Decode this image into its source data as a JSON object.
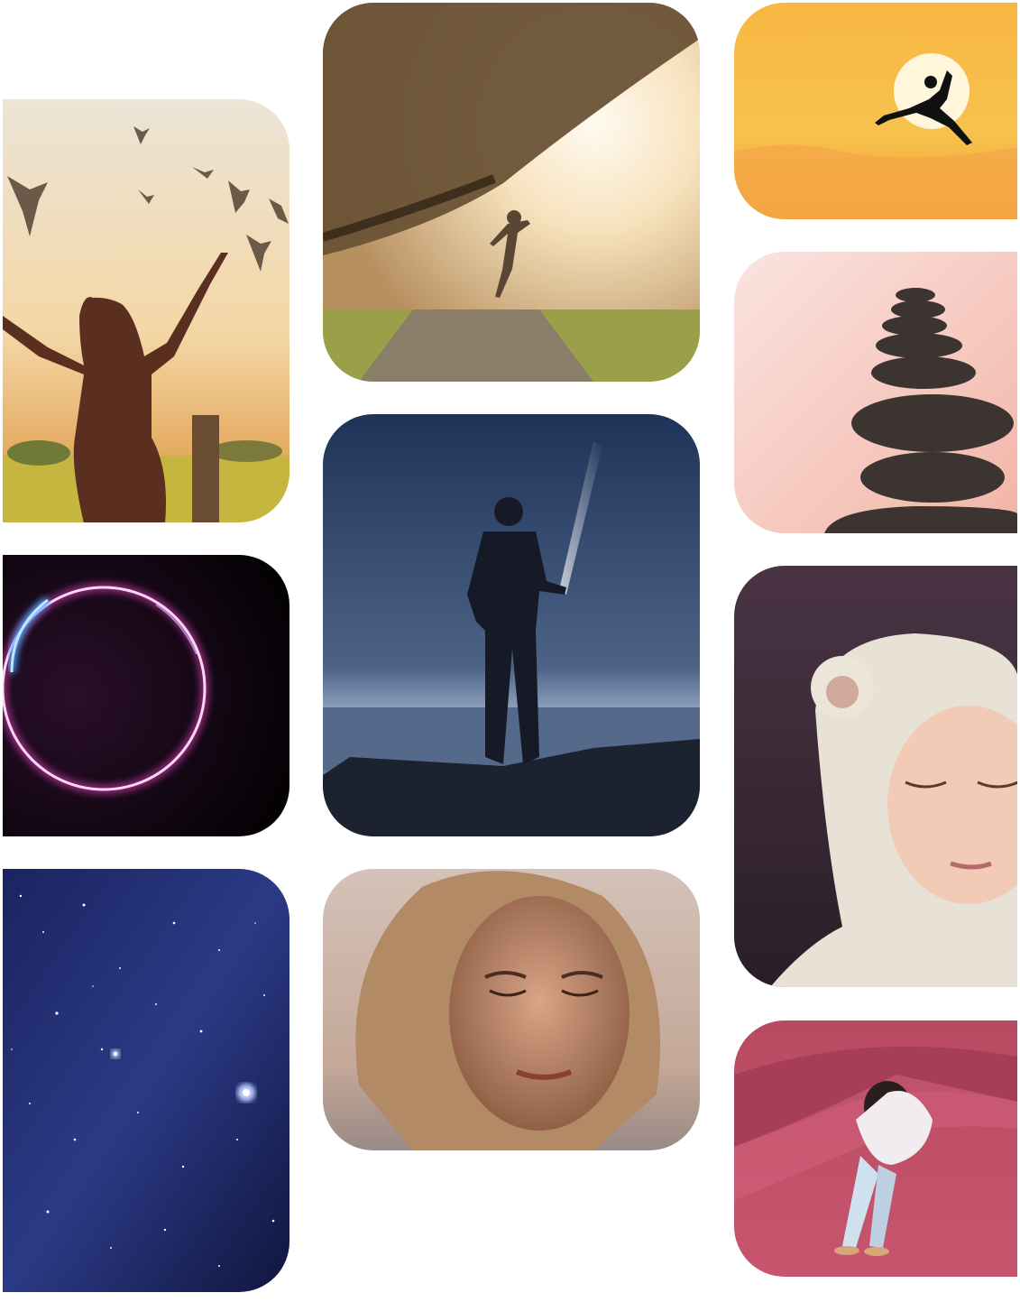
{
  "gallery": {
    "tiles": [
      {
        "subject": "woman-with-raised-arms-and-birds",
        "palette": [
          "#f3e4c4",
          "#d99a55",
          "#5a2f1f"
        ]
      },
      {
        "subject": "neon-ring",
        "palette": [
          "#000000",
          "#ff3fd0",
          "#3fa9ff"
        ]
      },
      {
        "subject": "starry-night-sky",
        "palette": [
          "#141c4a",
          "#2f3e8c",
          "#ffffff"
        ]
      },
      {
        "subject": "person-leaping-under-tree-in-sunlight",
        "palette": [
          "#f7e6c7",
          "#6a5236",
          "#9aa04a"
        ]
      },
      {
        "subject": "man-with-flashlight-on-rocks-at-night",
        "palette": [
          "#2a3f66",
          "#7f96b8",
          "#1c2230"
        ]
      },
      {
        "subject": "woman-with-closed-eyes",
        "palette": [
          "#c9a58f",
          "#8a5a40",
          "#e9d3c5"
        ]
      },
      {
        "subject": "silhouette-jumping-at-sunset",
        "palette": [
          "#f7c04a",
          "#f39a2c",
          "#fff6dc"
        ]
      },
      {
        "subject": "stacked-stones",
        "palette": [
          "#f8d7d3",
          "#f2b4a6",
          "#3b3431"
        ]
      },
      {
        "subject": "child-in-bear-hood-eyes-closed",
        "palette": [
          "#3a2a38",
          "#e8e2d6",
          "#f1cbb5"
        ]
      },
      {
        "subject": "person-hugging-knees-on-pink-surface",
        "palette": [
          "#c8556e",
          "#a63e58",
          "#f1ecef"
        ]
      }
    ]
  }
}
